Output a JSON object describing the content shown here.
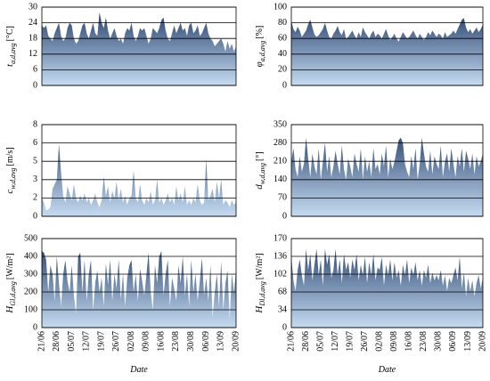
{
  "chart_data": [
    {
      "type": "area",
      "ylabel": {
        "symbol": "t",
        "sub": "a,d,avg",
        "unit": "[°C]"
      },
      "values": [
        23,
        22,
        23,
        19,
        18,
        17,
        20,
        22,
        24,
        19,
        17,
        18,
        22,
        24,
        23,
        18,
        16,
        17,
        20,
        23,
        24,
        20,
        18,
        21,
        24,
        20,
        19,
        28,
        24,
        22,
        26,
        21,
        18,
        20,
        22,
        19,
        17,
        18,
        16,
        20,
        22,
        21,
        24,
        19,
        17,
        19,
        22,
        21,
        22,
        19,
        16,
        18,
        22,
        21,
        20,
        22,
        25,
        26,
        21,
        18,
        17,
        20,
        23,
        20,
        22,
        24,
        21,
        22,
        19,
        23,
        24,
        20,
        21,
        23,
        19,
        20,
        22,
        24,
        20,
        18,
        17,
        15,
        16,
        17,
        18,
        16,
        13,
        17,
        14,
        16,
        13,
        15
      ],
      "ylim": [
        0,
        30
      ],
      "yticks": [
        0,
        6,
        12,
        18,
        24,
        30
      ],
      "grid": true,
      "color_top": "#1f3864",
      "color_bottom": "#c5dcf2"
    },
    {
      "type": "area",
      "ylabel": {
        "symbol": "φ",
        "sub": "a,d,avg",
        "unit": "[%]"
      },
      "values": [
        82,
        72,
        68,
        75,
        70,
        62,
        66,
        70,
        78,
        84,
        74,
        65,
        62,
        64,
        68,
        72,
        80,
        70,
        62,
        60,
        66,
        70,
        76,
        68,
        64,
        72,
        60,
        62,
        66,
        70,
        64,
        60,
        68,
        62,
        74,
        68,
        64,
        60,
        66,
        70,
        62,
        66,
        64,
        60,
        66,
        72,
        64,
        58,
        62,
        66,
        60,
        56,
        62,
        68,
        64,
        60,
        62,
        66,
        70,
        64,
        60,
        66,
        62,
        58,
        62,
        68,
        64,
        70,
        66,
        62,
        66,
        64,
        60,
        68,
        62,
        64,
        66,
        70,
        66,
        72,
        78,
        84,
        86,
        74,
        68,
        72,
        66,
        70,
        74,
        68,
        72,
        78
      ],
      "ylim": [
        0,
        100
      ],
      "yticks": [
        0,
        20,
        40,
        60,
        80,
        100
      ],
      "grid": true,
      "color_top": "#1f3864",
      "color_bottom": "#c5dcf2"
    },
    {
      "type": "area",
      "ylabel": {
        "symbol": "c",
        "sub": "w,d,avg",
        "unit": "[m/s]"
      },
      "values": [
        1.6,
        1.2,
        0.5,
        0.6,
        0.8,
        2.4,
        2.8,
        3.2,
        6.3,
        3.8,
        1.8,
        1.2,
        2.6,
        2.0,
        1.4,
        2.8,
        1.6,
        1.2,
        1.8,
        1.4,
        2.0,
        1.2,
        1.6,
        1.0,
        1.4,
        2.0,
        1.2,
        0.8,
        1.4,
        3.5,
        1.8,
        2.6,
        1.2,
        2.2,
        1.6,
        3.0,
        1.4,
        2.4,
        1.2,
        1.8,
        1.0,
        1.6,
        1.8,
        4.0,
        1.6,
        1.2,
        2.8,
        1.4,
        1.0,
        1.6,
        1.2,
        2.2,
        1.0,
        1.4,
        3.2,
        1.2,
        1.6,
        1.0,
        1.4,
        2.0,
        1.2,
        1.6,
        1.0,
        2.6,
        1.4,
        2.0,
        1.2,
        2.6,
        1.0,
        1.4,
        1.0,
        1.6,
        1.2,
        2.8,
        1.4,
        1.0,
        1.2,
        5.0,
        1.4,
        1.8,
        2.4,
        1.2,
        3.0,
        1.6,
        3.2,
        1.0,
        1.4,
        1.2,
        0.8,
        1.4,
        1.0,
        1.2
      ],
      "ylim": [
        0,
        8
      ],
      "yticks": [
        0,
        {
          "value": 1.6,
          "label": "2"
        },
        {
          "value": 3.2,
          "label": "3"
        },
        {
          "value": 4.8,
          "label": "5"
        },
        {
          "value": 6.4,
          "label": "6"
        },
        8
      ],
      "grid": true,
      "color_top": "#1f3864",
      "color_bottom": "#c5dcf2"
    },
    {
      "type": "area",
      "ylabel": {
        "symbol": "d",
        "sub": "w,d,avg",
        "unit": "[°]"
      },
      "values": [
        210,
        260,
        180,
        150,
        230,
        170,
        200,
        300,
        220,
        150,
        240,
        190,
        160,
        260,
        140,
        210,
        280,
        170,
        230,
        150,
        190,
        250,
        200,
        160,
        270,
        180,
        140,
        220,
        190,
        150,
        240,
        200,
        170,
        260,
        140,
        230,
        170,
        210,
        150,
        260,
        180,
        200,
        160,
        240,
        190,
        270,
        150,
        220,
        180,
        210,
        250,
        290,
        300,
        280,
        200,
        170,
        150,
        230,
        180,
        260,
        140,
        200,
        300,
        240,
        190,
        170,
        250,
        160,
        230,
        200,
        180,
        270,
        150,
        210,
        240,
        170,
        260,
        200,
        150,
        230,
        190,
        260,
        170,
        250,
        220,
        180,
        240,
        160,
        230,
        190,
        210,
        240
      ],
      "ylim": [
        0,
        350
      ],
      "yticks": [
        0,
        70,
        140,
        210,
        280,
        350
      ],
      "grid": true,
      "color_top": "#1f3864",
      "color_bottom": "#c5dcf2"
    },
    {
      "type": "area",
      "ylabel": {
        "symbol": "H",
        "sub": "Gl,d,avg",
        "unit": "[W/m²]"
      },
      "xlabel": "Date",
      "categories": [
        "21/06",
        null,
        null,
        null,
        null,
        null,
        null,
        "28/06",
        null,
        null,
        null,
        null,
        null,
        null,
        "05/07",
        null,
        null,
        null,
        null,
        null,
        null,
        "12/07",
        null,
        null,
        null,
        null,
        null,
        null,
        "19/07",
        null,
        null,
        null,
        null,
        null,
        null,
        "26/07",
        null,
        null,
        null,
        null,
        null,
        null,
        "02/08",
        null,
        null,
        null,
        null,
        null,
        null,
        "09/08",
        null,
        null,
        null,
        null,
        null,
        null,
        "16/08",
        null,
        null,
        null,
        null,
        null,
        null,
        "23/08",
        null,
        null,
        null,
        null,
        null,
        null,
        "30/08",
        null,
        null,
        null,
        null,
        null,
        null,
        "06/09",
        null,
        null,
        null,
        null,
        null,
        null,
        "13/09",
        null,
        null,
        null,
        null,
        null,
        null,
        "20/09"
      ],
      "values": [
        430,
        420,
        380,
        200,
        350,
        300,
        150,
        400,
        250,
        120,
        300,
        380,
        260,
        200,
        350,
        180,
        80,
        400,
        420,
        200,
        380,
        150,
        300,
        380,
        100,
        250,
        320,
        200,
        280,
        120,
        360,
        240,
        380,
        150,
        300,
        220,
        380,
        160,
        300,
        120,
        280,
        350,
        380,
        200,
        300,
        150,
        330,
        260,
        180,
        300,
        420,
        200,
        100,
        350,
        250,
        400,
        430,
        180,
        300,
        380,
        120,
        280,
        220,
        150,
        350,
        250,
        400,
        180,
        300,
        120,
        380,
        200,
        300,
        150,
        260,
        390,
        180,
        280,
        150,
        350,
        60,
        200,
        300,
        120,
        370,
        100,
        250,
        320,
        50,
        300,
        200,
        320
      ],
      "ylim": [
        0,
        500
      ],
      "yticks": [
        0,
        100,
        200,
        300,
        400,
        500
      ],
      "grid": true,
      "color_top": "#1f3864",
      "color_bottom": "#c5dcf2"
    },
    {
      "type": "area",
      "ylabel": {
        "symbol": "H",
        "sub": "Dl,d,avg",
        "unit": "[W/m²]"
      },
      "xlabel": "Date",
      "categories": [
        "21/06",
        null,
        null,
        null,
        null,
        null,
        null,
        "28/06",
        null,
        null,
        null,
        null,
        null,
        null,
        "05/07",
        null,
        null,
        null,
        null,
        null,
        null,
        "12/07",
        null,
        null,
        null,
        null,
        null,
        null,
        "19/07",
        null,
        null,
        null,
        null,
        null,
        null,
        "26/07",
        null,
        null,
        null,
        null,
        null,
        null,
        "02/08",
        null,
        null,
        null,
        null,
        null,
        null,
        "09/08",
        null,
        null,
        null,
        null,
        null,
        null,
        "16/08",
        null,
        null,
        null,
        null,
        null,
        null,
        "23/08",
        null,
        null,
        null,
        null,
        null,
        null,
        "30/08",
        null,
        null,
        null,
        null,
        null,
        null,
        "06/09",
        null,
        null,
        null,
        null,
        null,
        null,
        "13/09",
        null,
        null,
        null,
        null,
        null,
        null,
        "20/09"
      ],
      "values": [
        136,
        90,
        70,
        110,
        130,
        100,
        80,
        150,
        110,
        140,
        90,
        120,
        150,
        100,
        130,
        80,
        150,
        120,
        140,
        95,
        110,
        150,
        100,
        130,
        85,
        140,
        110,
        125,
        95,
        130,
        110,
        140,
        90,
        120,
        100,
        135,
        85,
        125,
        100,
        140,
        90,
        115,
        110,
        135,
        80,
        120,
        100,
        130,
        90,
        125,
        95,
        110,
        80,
        120,
        100,
        130,
        85,
        115,
        100,
        125,
        90,
        110,
        80,
        110,
        95,
        120,
        85,
        105,
        90,
        100,
        90,
        110,
        80,
        100,
        70,
        95,
        85,
        100,
        115,
        90,
        135,
        75,
        105,
        60,
        95,
        70,
        90,
        60,
        85,
        100,
        75,
        95
      ],
      "ylim": [
        0,
        170
      ],
      "yticks": [
        0,
        34,
        68,
        102,
        136,
        170
      ],
      "grid": true,
      "color_top": "#1f3864",
      "color_bottom": "#c5dcf2"
    }
  ]
}
